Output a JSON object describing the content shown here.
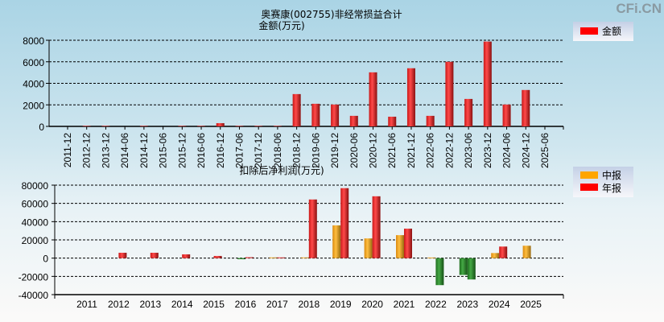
{
  "watermark": "CFi.CN",
  "title": "奥赛康(002755)非经常损益合计",
  "chart_data": [
    {
      "type": "bar",
      "ylabel": "金额(万元)",
      "ylim": [
        0,
        8000
      ],
      "yticks": [
        0,
        2000,
        4000,
        6000,
        8000
      ],
      "grid": true,
      "legend_placement": "top-right",
      "categories": [
        "2011-12",
        "2012-12",
        "2013-12",
        "2014-06",
        "2014-12",
        "2015-06",
        "2015-12",
        "2016-06",
        "2016-12",
        "2017-06",
        "2017-12",
        "2018-06",
        "2018-12",
        "2019-06",
        "2019-12",
        "2020-06",
        "2020-12",
        "2021-06",
        "2021-12",
        "2022-06",
        "2022-12",
        "2023-06",
        "2023-12",
        "2024-06",
        "2024-12",
        "2025-06"
      ],
      "series": [
        {
          "name": "金额",
          "color": "#ff0000",
          "values": [
            0,
            50,
            50,
            0,
            50,
            0,
            50,
            50,
            300,
            50,
            50,
            50,
            3000,
            2100,
            2030,
            980,
            5020,
            900,
            5400,
            980,
            6000,
            2550,
            7880,
            2030,
            3380,
            0
          ]
        }
      ]
    },
    {
      "type": "bar",
      "ylabel": "扣除后净利润(万元)",
      "ylim": [
        -40000,
        80000
      ],
      "yticks": [
        -40000,
        -20000,
        0,
        20000,
        40000,
        60000,
        80000
      ],
      "grid": true,
      "legend_placement": "top-right",
      "negative_color": "#2e8b2e",
      "categories": [
        "2011",
        "2012",
        "2013",
        "2014",
        "2015",
        "2016",
        "2017",
        "2018",
        "2019",
        "2020",
        "2021",
        "2022",
        "2023",
        "2024",
        "2025"
      ],
      "series": [
        {
          "name": "中报",
          "color": "#ffa500",
          "values": [
            null,
            null,
            null,
            null,
            null,
            -1200,
            800,
            800,
            35900,
            21600,
            25200,
            700,
            -18400,
            5600,
            13600
          ]
        },
        {
          "name": "年报",
          "color": "#ff0000",
          "values": [
            null,
            5900,
            5900,
            4150,
            2400,
            1000,
            800,
            64300,
            76700,
            67800,
            32300,
            -29600,
            -23400,
            12700,
            null
          ]
        }
      ]
    }
  ]
}
